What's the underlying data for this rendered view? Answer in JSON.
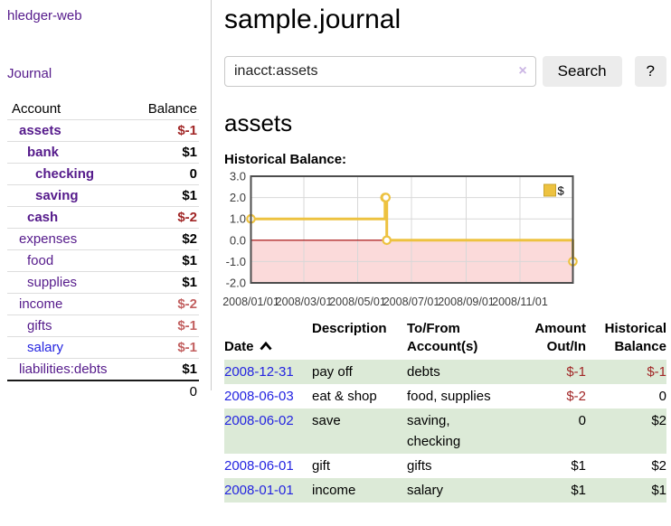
{
  "app": {
    "brand": "hledger-web",
    "nav_journal": "Journal"
  },
  "colors": {
    "link_purple": "#551a8b",
    "link_blue": "#2424e0",
    "negative_strong": "#a12626",
    "negative_soft": "#c26060",
    "row_green": "#dcead7",
    "row_border": "#dddddd",
    "divider": "#cccccc",
    "button_bg": "#ececec",
    "input_border": "#c8c8c8",
    "clear_icon": "#cbb6e4"
  },
  "sidebar": {
    "columns": {
      "account": "Account",
      "balance": "Balance"
    },
    "accounts": [
      {
        "name": "assets",
        "depth": 1,
        "bold": true,
        "balance": "$-1",
        "tone": "neg-strong",
        "link": "purple"
      },
      {
        "name": "bank",
        "depth": 2,
        "bold": true,
        "balance": "$1",
        "tone": "normal",
        "link": "purple"
      },
      {
        "name": "checking",
        "depth": 3,
        "bold": true,
        "balance": "0",
        "tone": "normal",
        "link": "purple"
      },
      {
        "name": "saving",
        "depth": 3,
        "bold": true,
        "balance": "$1",
        "tone": "normal",
        "link": "purple"
      },
      {
        "name": "cash",
        "depth": 2,
        "bold": true,
        "balance": "$-2",
        "tone": "neg-strong",
        "link": "purple"
      },
      {
        "name": "expenses",
        "depth": 1,
        "bold": false,
        "balance": "$2",
        "tone": "normal",
        "link": "purple"
      },
      {
        "name": "food",
        "depth": 2,
        "bold": false,
        "balance": "$1",
        "tone": "normal",
        "link": "purple"
      },
      {
        "name": "supplies",
        "depth": 2,
        "bold": false,
        "balance": "$1",
        "tone": "normal",
        "link": "purple"
      },
      {
        "name": "income",
        "depth": 1,
        "bold": false,
        "balance": "$-2",
        "tone": "neg-soft",
        "link": "purple"
      },
      {
        "name": "gifts",
        "depth": 2,
        "bold": false,
        "balance": "$-1",
        "tone": "neg-soft",
        "link": "purple"
      },
      {
        "name": "salary",
        "depth": 2,
        "bold": false,
        "balance": "$-1",
        "tone": "neg-soft",
        "link": "blue"
      },
      {
        "name": "liabilities:debts",
        "depth": 1,
        "bold": false,
        "balance": "$1",
        "tone": "normal",
        "link": "purple"
      }
    ],
    "total": "0"
  },
  "main": {
    "title": "sample.journal",
    "search": {
      "value": "inacct:assets",
      "clear_icon": "×",
      "button_label": "Search",
      "help_label": "?"
    },
    "account_heading": "assets",
    "chart_label": "Historical Balance:"
  },
  "chart_data": {
    "type": "line",
    "title": "Historical Balance",
    "steps": true,
    "series": [
      {
        "name": "$",
        "color": "#edc240",
        "points": [
          {
            "date": "2008-01-01",
            "value": 1
          },
          {
            "date": "2008-06-01",
            "value": 2
          },
          {
            "date": "2008-06-02",
            "value": 2
          },
          {
            "date": "2008-06-03",
            "value": 0
          },
          {
            "date": "2008-12-31",
            "value": -1
          }
        ],
        "point_days": [
          0,
          152,
          153,
          154,
          365
        ]
      }
    ],
    "x_range_days": [
      0,
      365
    ],
    "ylim": [
      -2,
      3
    ],
    "x_tick_labels": [
      "2008/01/01",
      "2008/03/01",
      "2008/05/01",
      "2008/07/01",
      "2008/09/01",
      "2008/11/01"
    ],
    "x_tick_days": [
      0,
      60,
      121,
      182,
      244,
      305
    ],
    "y_tick_values": [
      3,
      2,
      1,
      0,
      -1,
      -2
    ],
    "y_tick_labels": [
      "3.0",
      "2.0",
      "1.0",
      "0.0",
      "-1.0",
      "-2.0"
    ],
    "grid": true,
    "grid_color": "#d8d8d8",
    "border_color": "#4d4d4d",
    "zero_line_color": "#a00000",
    "negative_fill": "#fbdada",
    "tick_label_color": "#3c3c3c",
    "legend": {
      "position": "top-right",
      "label": "$",
      "swatch_border": "#c9a42e"
    }
  },
  "table": {
    "headers": {
      "date": "Date",
      "sort_icon": "chevron-up",
      "description": "Description",
      "accounts": "To/From\nAccount(s)",
      "amount": "Amount\nOut/In",
      "balance": "Historical\nBalance"
    },
    "rows": [
      {
        "date": "2008-12-31",
        "description": "pay off",
        "accounts": "debts",
        "amount": "$-1",
        "amount_negative": true,
        "balance": "$-1",
        "balance_negative": true
      },
      {
        "date": "2008-06-03",
        "description": "eat & shop",
        "accounts": "food, supplies",
        "amount": "$-2",
        "amount_negative": true,
        "balance": "0",
        "balance_negative": false
      },
      {
        "date": "2008-06-02",
        "description": "save",
        "accounts": "saving,\nchecking",
        "amount": "0",
        "amount_negative": false,
        "balance": "$2",
        "balance_negative": false
      },
      {
        "date": "2008-06-01",
        "description": "gift",
        "accounts": "gifts",
        "amount": "$1",
        "amount_negative": false,
        "balance": "$2",
        "balance_negative": false
      },
      {
        "date": "2008-01-01",
        "description": "income",
        "accounts": "salary",
        "amount": "$1",
        "amount_negative": false,
        "balance": "$1",
        "balance_negative": false
      }
    ]
  }
}
